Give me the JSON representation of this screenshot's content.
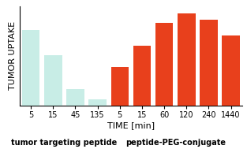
{
  "chart_data": {
    "type": "bar",
    "categories": [
      "5",
      "15",
      "45",
      "135",
      "5",
      "15",
      "60",
      "120",
      "240",
      "1440"
    ],
    "values": [
      0.82,
      0.55,
      0.18,
      0.07,
      0.42,
      0.65,
      0.9,
      1.0,
      0.93,
      0.76
    ],
    "colors": [
      "#c8ede6",
      "#c8ede6",
      "#c8ede6",
      "#c8ede6",
      "#e8401c",
      "#e8401c",
      "#e8401c",
      "#e8401c",
      "#e8401c",
      "#e8401c"
    ],
    "x_label": "TIME [min]",
    "y_label": "TUMOR UPTAKE",
    "annotations": [
      "tumor targeting peptide",
      "peptide-PEG-conjugate"
    ],
    "ylim": [
      0,
      1.08
    ],
    "yticks": [],
    "tick_labels": "x",
    "grid": false
  }
}
